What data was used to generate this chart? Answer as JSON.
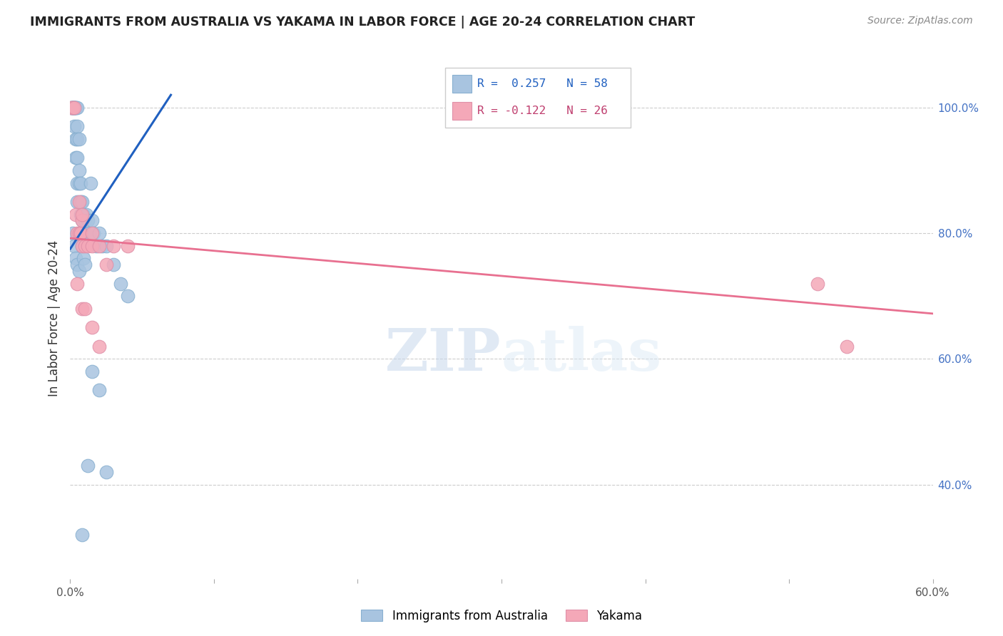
{
  "title": "IMMIGRANTS FROM AUSTRALIA VS YAKAMA IN LABOR FORCE | AGE 20-24 CORRELATION CHART",
  "source": "Source: ZipAtlas.com",
  "ylabel": "In Labor Force | Age 20-24",
  "xlim": [
    0.0,
    0.6
  ],
  "ylim": [
    0.25,
    1.08
  ],
  "xticks": [
    0.0,
    0.1,
    0.2,
    0.3,
    0.4,
    0.5,
    0.6
  ],
  "xticklabels": [
    "0.0%",
    "",
    "",
    "",
    "",
    "",
    "60.0%"
  ],
  "yticks_right": [
    0.4,
    0.6,
    0.8,
    1.0
  ],
  "ytick_labels_right": [
    "40.0%",
    "60.0%",
    "80.0%",
    "100.0%"
  ],
  "blue_R": 0.257,
  "blue_N": 58,
  "pink_R": -0.122,
  "pink_N": 26,
  "blue_color": "#a8c4e0",
  "pink_color": "#f4a8b8",
  "blue_line_color": "#2060c0",
  "pink_line_color": "#e87090",
  "watermark_zip": "ZIP",
  "watermark_atlas": "atlas",
  "blue_scatter_x": [
    0.001,
    0.001,
    0.002,
    0.002,
    0.002,
    0.003,
    0.003,
    0.003,
    0.003,
    0.003,
    0.004,
    0.004,
    0.004,
    0.004,
    0.005,
    0.005,
    0.005,
    0.005,
    0.005,
    0.005,
    0.006,
    0.006,
    0.006,
    0.007,
    0.007,
    0.007,
    0.008,
    0.008,
    0.009,
    0.01,
    0.01,
    0.011,
    0.012,
    0.013,
    0.014,
    0.015,
    0.016,
    0.018,
    0.02,
    0.022,
    0.025,
    0.03,
    0.035,
    0.04,
    0.002,
    0.003,
    0.004,
    0.005,
    0.006,
    0.007,
    0.008,
    0.009,
    0.01,
    0.015,
    0.02,
    0.025,
    0.012,
    0.008
  ],
  "blue_scatter_y": [
    1.0,
    1.0,
    1.0,
    1.0,
    1.0,
    1.0,
    1.0,
    1.0,
    1.0,
    0.97,
    1.0,
    1.0,
    0.95,
    0.92,
    1.0,
    0.97,
    0.95,
    0.92,
    0.88,
    0.85,
    0.95,
    0.9,
    0.88,
    0.88,
    0.85,
    0.83,
    0.85,
    0.82,
    0.83,
    0.82,
    0.8,
    0.83,
    0.82,
    0.8,
    0.88,
    0.82,
    0.8,
    0.78,
    0.8,
    0.78,
    0.78,
    0.75,
    0.72,
    0.7,
    0.8,
    0.78,
    0.76,
    0.75,
    0.74,
    0.8,
    0.78,
    0.76,
    0.75,
    0.58,
    0.55,
    0.42,
    0.43,
    0.32
  ],
  "pink_scatter_x": [
    0.001,
    0.002,
    0.003,
    0.004,
    0.005,
    0.006,
    0.006,
    0.007,
    0.008,
    0.008,
    0.01,
    0.012,
    0.015,
    0.02,
    0.025,
    0.03,
    0.04,
    0.005,
    0.008,
    0.01,
    0.015,
    0.02,
    0.008,
    0.015,
    0.52,
    0.54
  ],
  "pink_scatter_y": [
    1.0,
    1.0,
    1.0,
    0.83,
    0.8,
    0.8,
    0.85,
    0.8,
    0.78,
    0.82,
    0.78,
    0.78,
    0.78,
    0.78,
    0.75,
    0.78,
    0.78,
    0.72,
    0.68,
    0.68,
    0.65,
    0.62,
    0.83,
    0.8,
    0.72,
    0.62
  ],
  "blue_trend_x": [
    0.0,
    0.07
  ],
  "blue_trend_y": [
    0.775,
    1.02
  ],
  "pink_trend_x": [
    0.0,
    0.6
  ],
  "pink_trend_y": [
    0.792,
    0.672
  ]
}
